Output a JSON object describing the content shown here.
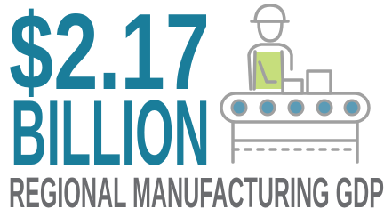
{
  "headline": {
    "amount": "$2.17",
    "unit": "BILLION"
  },
  "caption": "REGIONAL MANUFACTURING GDP"
}
